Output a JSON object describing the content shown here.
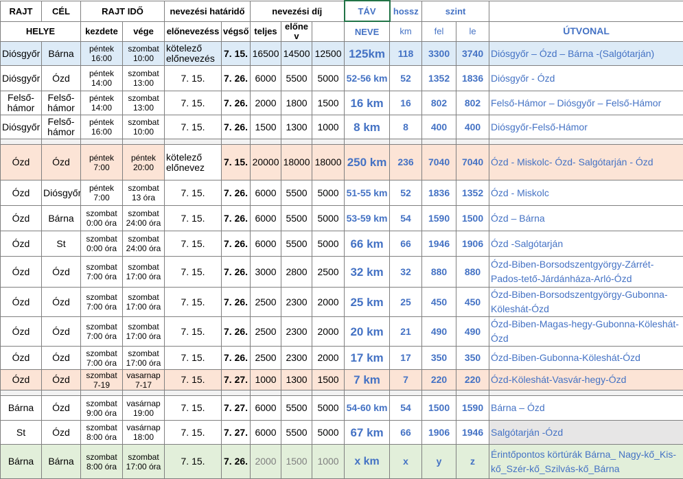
{
  "header1": {
    "rajt": "RAJT",
    "cel": "CÉL",
    "rajt_ido": "RAJT IDŐ",
    "nevezesi_hatarido": "nevezési határidő",
    "nevezesi_dij": "nevezési díj",
    "tav": "TÁV",
    "hossz": "hossz",
    "szint": "szint"
  },
  "header2": {
    "helye": "HELYE",
    "kezdete": "kezdete",
    "vege": "vége",
    "elonevezes": "előnevezéss",
    "vegso": "végső",
    "teljes": "teljes",
    "elone": "előne v",
    "neve": "NEVE",
    "km": "km",
    "fel": "fel",
    "le": "le",
    "utvonal": "ÚTVONAL"
  },
  "rows": [
    {
      "start": "Diósgyőr",
      "finish": "Bárna",
      "kezdete": "péntek 16:00",
      "vege": "szombat 10:00",
      "elonev": "kötelező előnevezés",
      "vegso": "7. 15.",
      "teljes": "16500",
      "elonev_dij": "14500",
      "dij3": "12500",
      "neve": "125km",
      "km": "118",
      "fel": "3300",
      "le": "3740",
      "route": "Diósgyőr  – Ózd – Bárna -(Salgótarján)"
    },
    {
      "start": "Diósgyőr",
      "finish": "Ózd",
      "kezdete": "péntek 14:00",
      "vege": "szombat 13:00",
      "elonev": "7. 15.",
      "vegso": "7. 26.",
      "teljes": "6000",
      "elonev_dij": "5500",
      "dij3": "5000",
      "neve": "52-56 km",
      "km": "52",
      "fel": "1352",
      "le": "1836",
      "route": "Diósgyőr - Ózd"
    },
    {
      "start": "Felső-hámor",
      "finish": "Felső-hámor",
      "kezdete": "péntek 14:00",
      "vege": "szombat 13:00",
      "elonev": "7. 15.",
      "vegso": "7. 26.",
      "teljes": "2000",
      "elonev_dij": "1800",
      "dij3": "1500",
      "neve": "16 km",
      "km": "16",
      "fel": "802",
      "le": "802",
      "route": "Felső-Hámor –  Diósgyőr –  Felső-Hámor"
    },
    {
      "start": "Diósgyőr",
      "finish": "Felső-hámor",
      "kezdete": "péntek 16:00",
      "vege": "szombat 10:00",
      "elonev": "7. 15.",
      "vegso": "7. 26.",
      "teljes": "1500",
      "elonev_dij": "1300",
      "dij3": "1000",
      "neve": "8 km",
      "km": "8",
      "fel": "400",
      "le": "400",
      "route": "Diósgyőr-Felső-Hámor"
    },
    {
      "start": "Ózd",
      "finish": "Ózd",
      "kezdete": "péntek 7:00",
      "vege": "péntek 20:00",
      "elonev": "kötelező előnevez",
      "vegso": "7. 15.",
      "teljes": "20000",
      "elonev_dij": "18000",
      "dij3": "18000",
      "neve": "250 km",
      "km": "236",
      "fel": "7040",
      "le": "7040",
      "route": "Ózd - Miskolc- Ózd- Salgótarján - Ózd"
    },
    {
      "start": "Ózd",
      "finish": "Diósgyőr",
      "kezdete": "péntek 7:00",
      "vege": "szombat 13 óra",
      "elonev": "7. 15.",
      "vegso": "7. 26.",
      "teljes": "6000",
      "elonev_dij": "5500",
      "dij3": "5000",
      "neve": "51-55 km",
      "km": "52",
      "fel": "1836",
      "le": "1352",
      "route": "Ózd - Miskolc"
    },
    {
      "start": "Ózd",
      "finish": "Bárna",
      "kezdete": "szombat 0:00 óra",
      "vege": "szombat 24:00 óra",
      "elonev": "7. 15.",
      "vegso": "7. 26.",
      "teljes": "6000",
      "elonev_dij": "5500",
      "dij3": "5000",
      "neve": "53-59 km",
      "km": "54",
      "fel": "1590",
      "le": "1500",
      "route": "Ózd – Bárna"
    },
    {
      "start": "Ózd",
      "finish": "St",
      "kezdete": "szombat 0:00 óra",
      "vege": "szombat 24:00 óra",
      "elonev": "7. 15.",
      "vegso": "7. 26.",
      "teljes": "6000",
      "elonev_dij": "5500",
      "dij3": "5000",
      "neve": "66 km",
      "km": "66",
      "fel": "1946",
      "le": "1906",
      "route": "Ózd -Salgótarján"
    },
    {
      "start": "Ózd",
      "finish": "Ózd",
      "kezdete": "szombat 7:00 óra",
      "vege": "szombat 17:00 óra",
      "elonev": "7. 15.",
      "vegso": "7. 26.",
      "teljes": "3000",
      "elonev_dij": "2800",
      "dij3": "2500",
      "neve": "32 km",
      "km": "32",
      "fel": "880",
      "le": "880",
      "route": "Ózd-Biben-Borsodszentgyörgy-Zárrét-Pados-tető-Járdánháza-Arló-Ózd"
    },
    {
      "start": "Ózd",
      "finish": "Ózd",
      "kezdete": "szombat 7:00 óra",
      "vege": "szombat 17:00 óra",
      "elonev": "7. 15.",
      "vegso": "7. 26.",
      "teljes": "2500",
      "elonev_dij": "2300",
      "dij3": "2000",
      "neve": "25 km",
      "km": "25",
      "fel": "450",
      "le": "450",
      "route": "Ózd-Biben-Borsodszentgyörgy-Gubonna-Köleshát-Ózd"
    },
    {
      "start": "Ózd",
      "finish": "Ózd",
      "kezdete": "szombat 7:00 óra",
      "vege": "szombat 17:00 óra",
      "elonev": "7. 15.",
      "vegso": "7. 26.",
      "teljes": "2500",
      "elonev_dij": "2300",
      "dij3": "2000",
      "neve": "20 km",
      "km": "21",
      "fel": "490",
      "le": "490",
      "route": "Ózd-Biben-Magas-hegy-Gubonna-Köleshát-Ózd"
    },
    {
      "start": "Ózd",
      "finish": "Ózd",
      "kezdete": "szombat 7:00 óra",
      "vege": "szombat 17:00 óra",
      "elonev": "7. 15.",
      "vegso": "7. 26.",
      "teljes": "2500",
      "elonev_dij": "2300",
      "dij3": "2000",
      "neve": "17 km",
      "km": "17",
      "fel": "350",
      "le": "350",
      "route": "Ózd-Biben-Gubonna-Köleshát-Ózd"
    },
    {
      "start": "Ózd",
      "finish": "Ózd",
      "kezdete": "szombat 7-19",
      "vege": "vasarnap 7-17",
      "elonev": "7. 15.",
      "vegso": "7. 27.",
      "teljes": "1000",
      "elonev_dij": "1300",
      "dij3": "1500",
      "neve": "7 km",
      "km": "7",
      "fel": "220",
      "le": "220",
      "route": "Ózd-Köleshát-Vasvár-hegy-Ózd"
    },
    {
      "start": "Bárna",
      "finish": "Ózd",
      "kezdete": "szombat 9:00 óra",
      "vege": "vasárnap 19:00",
      "elonev": "7. 15.",
      "vegso": "7. 27.",
      "teljes": "6000",
      "elonev_dij": "5500",
      "dij3": "5000",
      "neve": "54-60 km",
      "km": "54",
      "fel": "1500",
      "le": "1590",
      "route": "Bárna – Ózd"
    },
    {
      "start": "St",
      "finish": "Ózd",
      "kezdete": "szombat 8:00 óra",
      "vege": "vasárnap 18:00",
      "elonev": "7. 15.",
      "vegso": "7. 27.",
      "teljes": "6000",
      "elonev_dij": "5500",
      "dij3": "5000",
      "neve": "67 km",
      "km": "66",
      "fel": "1906",
      "le": "1946",
      "route": "Salgótarján -Ózd"
    },
    {
      "start": "Bárna",
      "finish": "Bárna",
      "kezdete": "szombat 8:00 óra",
      "vege": "szombat 17:00 óra",
      "elonev": "7. 15.",
      "vegso": "7. 26.",
      "teljes": "2000",
      "elonev_dij": "1500",
      "dij3": "1000",
      "neve": "x km",
      "km": "x",
      "fel": "y",
      "le": "z",
      "route": "Érintőpontos körtúrák    Bárna_ Nagy-kő_Kis-kő_Szér-kő_Szilvás-kő_Bárna"
    }
  ]
}
